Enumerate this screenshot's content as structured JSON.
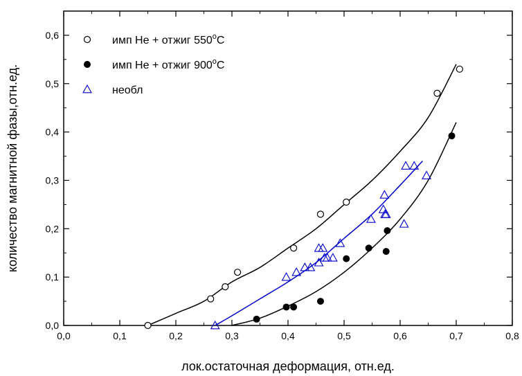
{
  "chart_data": {
    "type": "scatter",
    "xlabel": "лок.остаточная деформация, отн.ед.",
    "ylabel": "количество магнитной фазы,отн.ед.",
    "xlim": [
      0.0,
      0.8
    ],
    "ylim": [
      0.0,
      0.65
    ],
    "xticks": [
      "0,0",
      "0,1",
      "0,2",
      "0,3",
      "0,4",
      "0,5",
      "0,6",
      "0,7",
      "0,8"
    ],
    "yticks": [
      "0,0",
      "0,1",
      "0,2",
      "0,3",
      "0,4",
      "0,5",
      "0,6"
    ],
    "grid": false,
    "legend_position": "top-left",
    "series": [
      {
        "name": "имп He + отжиг 550",
        "name_sup": "o",
        "name_suffix": "C",
        "marker": "open-circle",
        "color": "#000000",
        "points": [
          [
            0.15,
            0.0
          ],
          [
            0.262,
            0.055
          ],
          [
            0.288,
            0.08
          ],
          [
            0.31,
            0.11
          ],
          [
            0.41,
            0.16
          ],
          [
            0.458,
            0.23
          ],
          [
            0.504,
            0.255
          ],
          [
            0.666,
            0.48
          ],
          [
            0.706,
            0.53
          ]
        ],
        "fit": [
          [
            0.15,
            0.0
          ],
          [
            0.2,
            0.025
          ],
          [
            0.25,
            0.05
          ],
          [
            0.3,
            0.09
          ],
          [
            0.35,
            0.12
          ],
          [
            0.4,
            0.16
          ],
          [
            0.45,
            0.2
          ],
          [
            0.5,
            0.25
          ],
          [
            0.55,
            0.3
          ],
          [
            0.6,
            0.36
          ],
          [
            0.65,
            0.43
          ],
          [
            0.7,
            0.54
          ]
        ],
        "fit_color": "#000000"
      },
      {
        "name": "имп He + отжиг 900",
        "name_sup": "o",
        "name_suffix": "C",
        "marker": "filled-circle",
        "color": "#000000",
        "points": [
          [
            0.344,
            0.013
          ],
          [
            0.397,
            0.038
          ],
          [
            0.41,
            0.038
          ],
          [
            0.458,
            0.05
          ],
          [
            0.504,
            0.138
          ],
          [
            0.544,
            0.16
          ],
          [
            0.575,
            0.153
          ],
          [
            0.577,
            0.196
          ],
          [
            0.692,
            0.392
          ]
        ],
        "fit": [
          [
            0.3,
            0.0
          ],
          [
            0.35,
            0.015
          ],
          [
            0.4,
            0.04
          ],
          [
            0.45,
            0.07
          ],
          [
            0.5,
            0.11
          ],
          [
            0.55,
            0.16
          ],
          [
            0.6,
            0.22
          ],
          [
            0.65,
            0.3
          ],
          [
            0.7,
            0.42
          ]
        ],
        "fit_color": "#000000"
      },
      {
        "name": "необл",
        "name_sup": "",
        "name_suffix": "",
        "marker": "open-triangle",
        "color": "#0000cc",
        "points": [
          [
            0.27,
            0.0
          ],
          [
            0.397,
            0.1
          ],
          [
            0.415,
            0.11
          ],
          [
            0.43,
            0.12
          ],
          [
            0.44,
            0.12
          ],
          [
            0.455,
            0.13
          ],
          [
            0.455,
            0.16
          ],
          [
            0.462,
            0.16
          ],
          [
            0.465,
            0.14
          ],
          [
            0.47,
            0.14
          ],
          [
            0.48,
            0.14
          ],
          [
            0.493,
            0.17
          ],
          [
            0.548,
            0.22
          ],
          [
            0.57,
            0.24
          ],
          [
            0.572,
            0.27
          ],
          [
            0.573,
            0.23
          ],
          [
            0.575,
            0.23
          ],
          [
            0.607,
            0.21
          ],
          [
            0.61,
            0.33
          ],
          [
            0.625,
            0.33
          ],
          [
            0.647,
            0.31
          ]
        ],
        "fit": [
          [
            0.27,
            0.0
          ],
          [
            0.3,
            0.02
          ],
          [
            0.35,
            0.055
          ],
          [
            0.4,
            0.09
          ],
          [
            0.45,
            0.13
          ],
          [
            0.5,
            0.18
          ],
          [
            0.55,
            0.23
          ],
          [
            0.6,
            0.29
          ],
          [
            0.64,
            0.34
          ]
        ],
        "fit_color": "#0000cc"
      }
    ]
  }
}
